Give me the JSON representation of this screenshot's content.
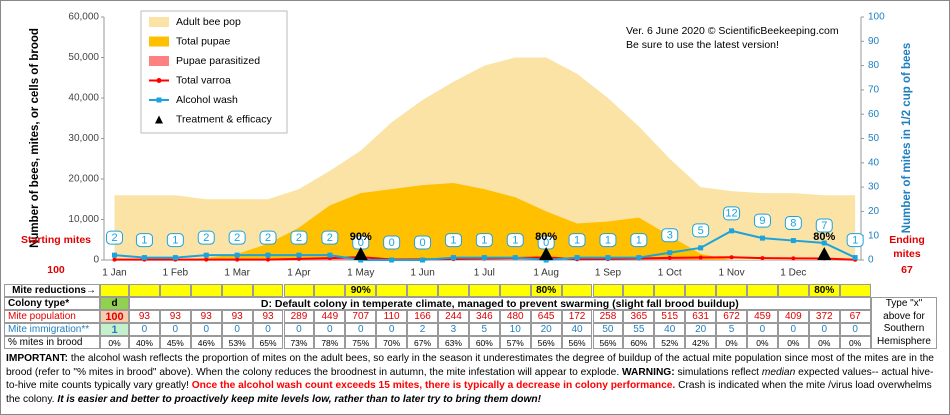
{
  "chart_data": {
    "type": "area",
    "annotations": [
      "Ver. 6 June 2020 © ScientificBeekeeping.com",
      "Be sure to use the latest version!"
    ],
    "y_label": "Number of bees, mites, or cells of brood",
    "y2_label": "Number of mites in 1/2 cup of bees",
    "categories": [
      "1 Jan",
      null,
      "1 Feb",
      null,
      "1 Mar",
      null,
      "1 Apr",
      null,
      "1 May",
      null,
      "1 Jun",
      null,
      "1 Jul",
      null,
      "1 Aug",
      null,
      "1 Sep",
      null,
      "1 Oct",
      null,
      "1 Nov",
      null,
      "1 Dec",
      null,
      null
    ],
    "ylim": [
      0,
      60000
    ],
    "yticks": [
      0,
      {
        "value": 10000,
        "label": "10,000"
      },
      {
        "value": 20000,
        "label": "20,000"
      },
      {
        "value": 30000,
        "label": "30,000"
      },
      {
        "value": 40000,
        "label": "40,000"
      },
      {
        "value": 50000,
        "label": "50,000"
      },
      {
        "value": 60000,
        "label": "60,000"
      }
    ],
    "y2lim": [
      0,
      100
    ],
    "y2ticks": [
      0,
      10,
      20,
      30,
      40,
      50,
      60,
      70,
      80,
      90,
      100
    ],
    "grid": false,
    "series": [
      {
        "name": "Adult bee pop",
        "type": "area",
        "color": "#fbe3a6",
        "values": [
          16000,
          16000,
          16000,
          15000,
          15000,
          15000,
          17500,
          22000,
          27000,
          34000,
          39500,
          44000,
          48000,
          50000,
          50000,
          46000,
          40000,
          33000,
          25000,
          18000,
          17000,
          16500,
          16500,
          16000,
          16000
        ]
      },
      {
        "name": "Total pupae",
        "type": "area",
        "color": "#ffc000",
        "values": [
          0,
          0,
          0,
          500,
          1500,
          4000,
          8000,
          13500,
          16500,
          17500,
          18500,
          19000,
          17500,
          15500,
          12000,
          9000,
          9500,
          10500,
          6000,
          1500,
          0,
          0,
          0,
          0,
          0
        ]
      },
      {
        "name": "Pupae parasitized",
        "type": "area",
        "color": "#ff8080",
        "values": [
          0,
          0,
          0,
          50,
          100,
          150,
          250,
          350,
          500,
          100,
          150,
          200,
          300,
          400,
          500,
          100,
          150,
          250,
          300,
          200,
          0,
          0,
          0,
          0,
          0
        ]
      },
      {
        "name": "Total varroa",
        "type": "line",
        "color": "#ff0000",
        "values": [
          100,
          93,
          93,
          93,
          93,
          93,
          289,
          449,
          707,
          110,
          166,
          244,
          346,
          480,
          645,
          172,
          258,
          365,
          515,
          631,
          672,
          459,
          409,
          372,
          67
        ]
      },
      {
        "name": "Alcohol wash",
        "type": "labeled-line",
        "axis": "y2",
        "color": "#1ca3dc",
        "values": [
          2,
          1,
          1,
          2,
          2,
          2,
          2,
          2,
          0,
          0,
          0,
          1,
          1,
          1,
          0,
          1,
          1,
          1,
          3,
          5,
          12,
          9,
          8,
          7,
          1
        ]
      },
      {
        "name": "Treatment & efficacy",
        "type": "marker",
        "color": "#000000",
        "values": [
          null,
          null,
          null,
          null,
          null,
          null,
          null,
          null,
          90,
          null,
          null,
          null,
          null,
          null,
          80,
          null,
          null,
          null,
          null,
          null,
          null,
          null,
          null,
          80,
          null
        ],
        "value_labels": [
          null,
          null,
          null,
          null,
          null,
          null,
          null,
          null,
          "90%",
          null,
          null,
          null,
          null,
          null,
          "80%",
          null,
          null,
          null,
          null,
          null,
          null,
          null,
          null,
          "80%",
          null
        ]
      }
    ],
    "start": {
      "label": "Starting mites",
      "value": 100
    },
    "end": {
      "label": "Ending mites",
      "value": 67
    }
  },
  "table": {
    "reductions_label": "Mite reductions→",
    "reductions": [
      null,
      null,
      null,
      null,
      null,
      null,
      null,
      null,
      "90%",
      null,
      null,
      null,
      null,
      null,
      "80%",
      null,
      null,
      null,
      null,
      null,
      null,
      null,
      null,
      "80%",
      null
    ],
    "colony_type_label": "Colony type*",
    "colony_type": "d",
    "colony_description": "D: Default colony in temperate climate, managed to prevent swarming (slight fall brood buildup)",
    "hemisphere_note": "Type \"x\" above for Southern Hemisphere",
    "rows": [
      {
        "label": "Mite population",
        "values": [
          100,
          93,
          93,
          93,
          93,
          93,
          289,
          449,
          707,
          110,
          166,
          244,
          346,
          480,
          645,
          172,
          258,
          365,
          515,
          631,
          672,
          459,
          409,
          372,
          67
        ]
      },
      {
        "label": "Mite immigration**",
        "values": [
          1,
          0,
          0,
          0,
          0,
          0,
          0,
          0,
          0,
          0,
          2,
          3,
          5,
          10,
          20,
          40,
          50,
          55,
          40,
          20,
          5,
          0,
          0,
          0,
          0
        ]
      },
      {
        "label": "% mites in brood",
        "values": [
          "0%",
          "40%",
          "45%",
          "46%",
          "53%",
          "65%",
          "73%",
          "78%",
          "75%",
          "70%",
          "67%",
          "63%",
          "60%",
          "57%",
          "56%",
          "56%",
          "56%",
          "60%",
          "52%",
          "42%",
          "0%",
          "0%",
          "0%",
          "0%",
          "0%"
        ]
      }
    ]
  },
  "notes": [
    "IMPORTANT:",
    " the alcohol wash reflects the proportion of mites on the adult bees, so early in the season it underestimates the degree of buildup of  the actual mite population since most of the mites are in the brood (refer to \"% mites in brood\" above).  When the colony reduces the broodnest in autumn, the mite infestation will appear to explode.  ",
    "WARNING:",
    " simulations reflect ",
    "median",
    " expected values-- actual hive-to-hive mite counts typically vary greatly!  ",
    "Once the alcohol wash count exceeds 15 mites, there is typically a decrease in colony performance.",
    " Crash is indicated when the mite /virus load  overwhelms the colony.  ",
    "It is easier and better to proactively keep mite levels low, rather than to later try to bring them down!"
  ]
}
